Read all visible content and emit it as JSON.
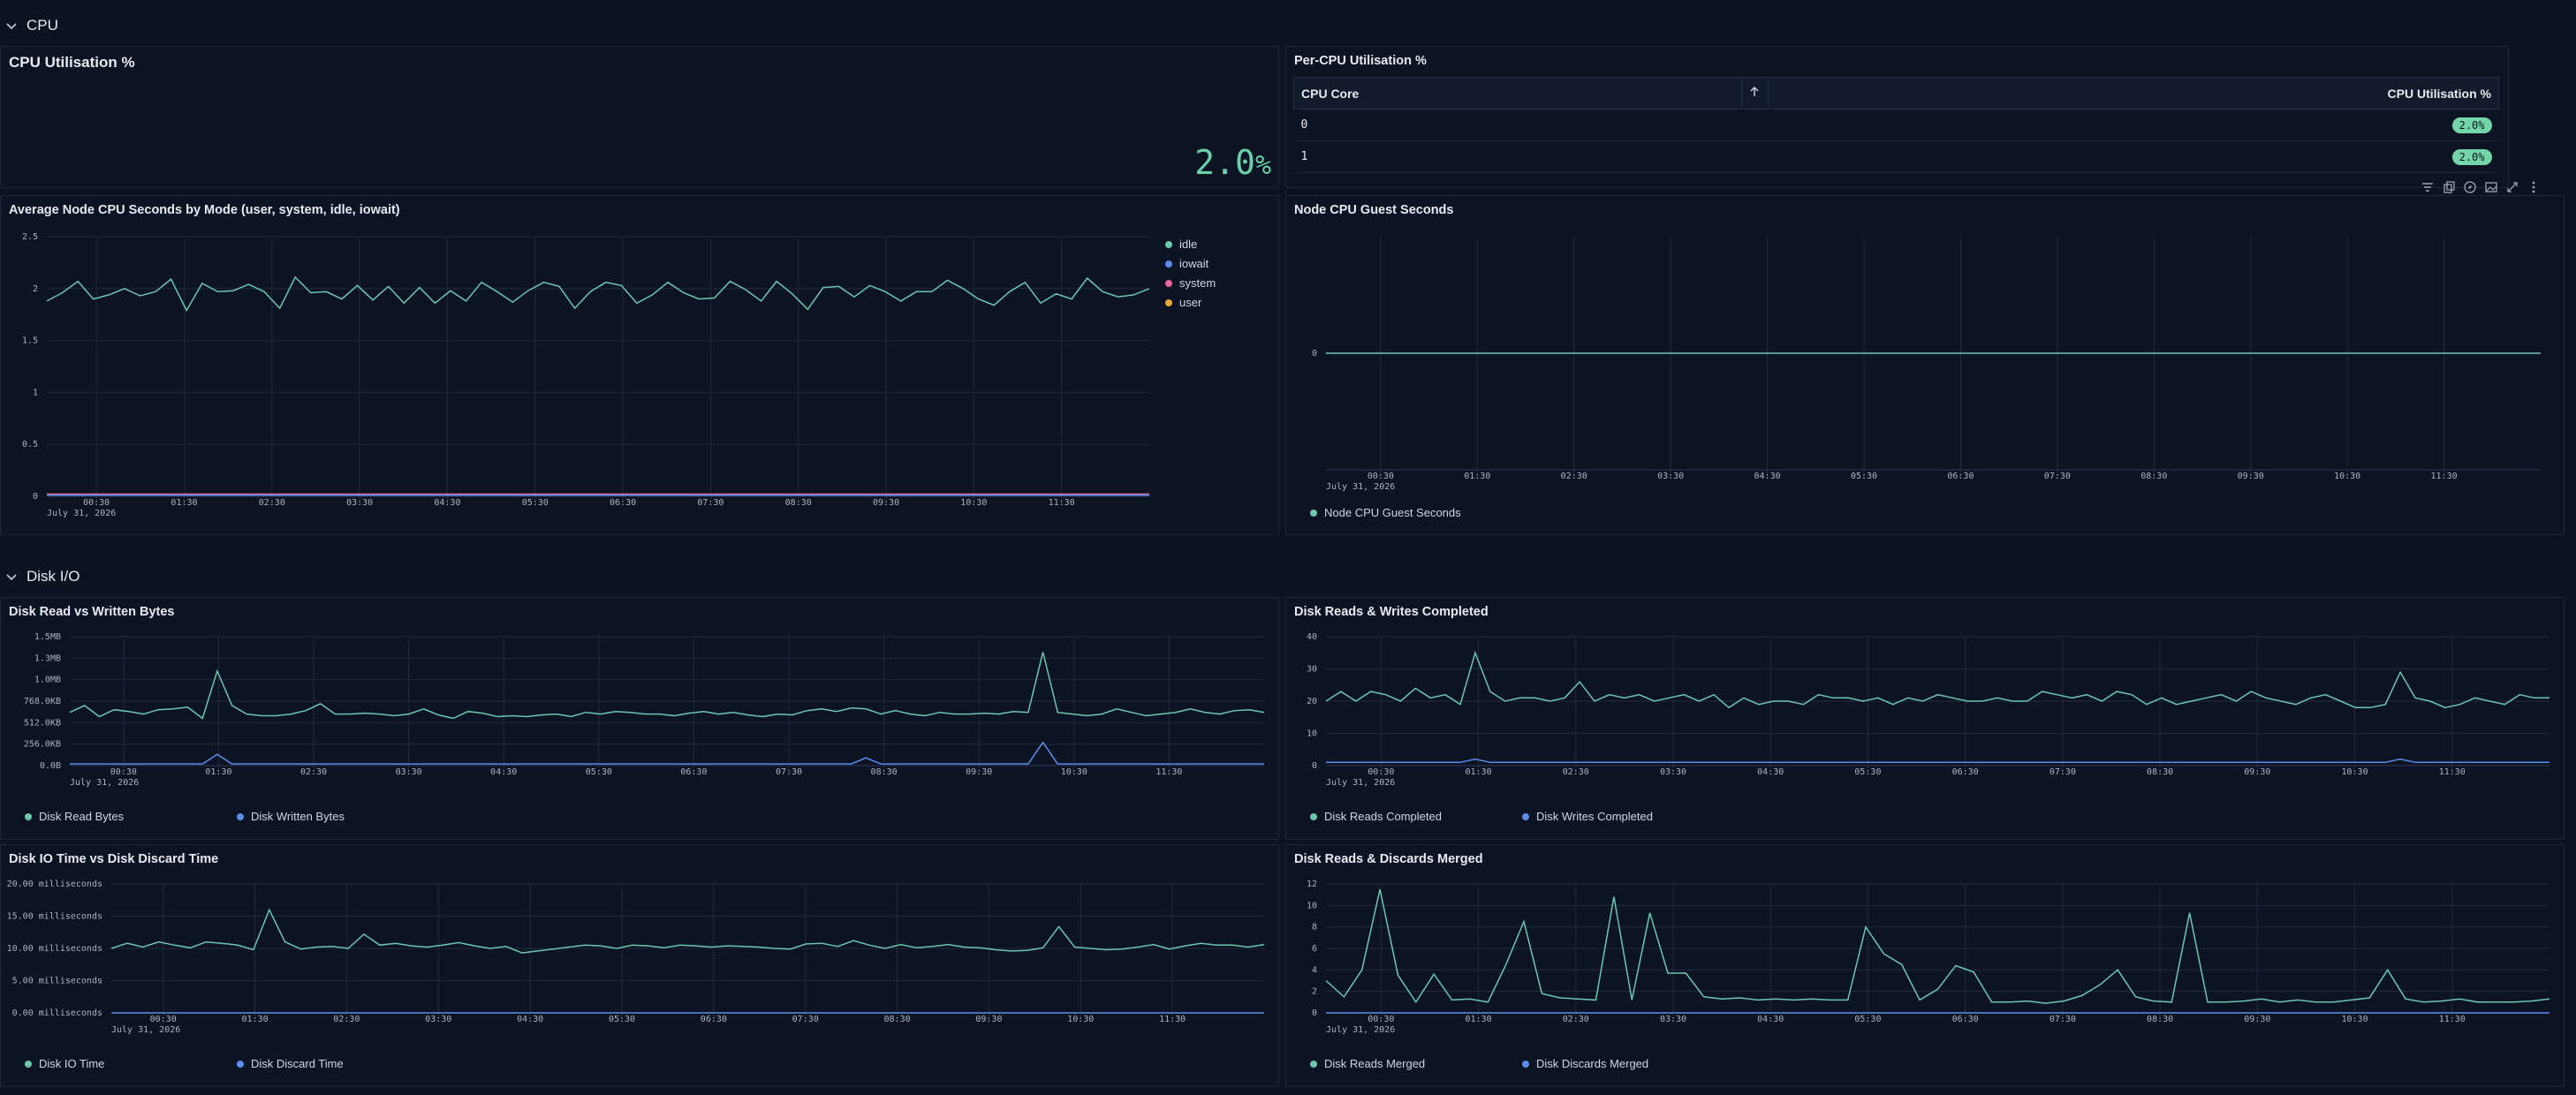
{
  "sections": {
    "cpu": "CPU",
    "disk": "Disk I/O"
  },
  "toolbar": {
    "icons": [
      "filter-icon",
      "copy-icon",
      "explore-icon",
      "image-icon",
      "expand-icon",
      "more-icon"
    ]
  },
  "colors": {
    "teal": "#6cc6b0",
    "blue": "#5b8def",
    "pink": "#e8659a",
    "orange": "#e8a838",
    "stat": "#6ad0a8"
  },
  "panels": {
    "cpu_util": {
      "title": "CPU Utilisation %",
      "value": "2.0",
      "unit": "%"
    },
    "per_cpu": {
      "title": "Per-CPU Utilisation %",
      "columns": [
        "CPU Core",
        "CPU Utilisation %"
      ],
      "sort_icon": "arrow-up-icon",
      "rows": [
        {
          "core": "0",
          "util": "2.0%"
        },
        {
          "core": "1",
          "util": "2.0%"
        }
      ]
    },
    "avg_cpu": {
      "title": "Average Node CPU Seconds by Mode (user, system, idle, iowait)"
    },
    "guest": {
      "title": "Node CPU Guest Seconds"
    },
    "disk_bytes": {
      "title": "Disk Read vs Written Bytes"
    },
    "disk_rw": {
      "title": "Disk Reads & Writes Completed"
    },
    "disk_io": {
      "title": "Disk IO Time vs Disk Discard Time"
    },
    "disk_merged": {
      "title": "Disk Reads & Discards Merged"
    }
  },
  "chart_data": [
    {
      "type": "line",
      "id": "avg_cpu",
      "date_label": "July 31, 2026",
      "x_ticks": [
        "00:30",
        "01:30",
        "02:30",
        "03:30",
        "04:30",
        "05:30",
        "06:30",
        "07:30",
        "08:30",
        "09:30",
        "10:30",
        "11:30"
      ],
      "y_ticks": [
        "0",
        "0.5",
        "1",
        "1.5",
        "2",
        "2.5"
      ],
      "ylim": [
        0,
        2.5
      ],
      "series": [
        {
          "name": "idle",
          "color": "#6cc6b0",
          "values": [
            1.88,
            1.96,
            2.07,
            1.9,
            1.94,
            2.0,
            1.93,
            1.97,
            2.09,
            1.79,
            2.05,
            1.97,
            1.98,
            2.04,
            1.97,
            1.81,
            2.11,
            1.96,
            1.97,
            1.9,
            2.03,
            1.89,
            2.02,
            1.86,
            2.01,
            1.86,
            1.98,
            1.88,
            2.06,
            1.97,
            1.87,
            1.98,
            2.06,
            2.02,
            1.81,
            1.97,
            2.06,
            2.03,
            1.86,
            1.94,
            2.06,
            1.96,
            1.9,
            1.91,
            2.07,
            1.99,
            1.88,
            2.07,
            1.95,
            1.8,
            2.01,
            2.02,
            1.92,
            2.03,
            1.97,
            1.88,
            1.97,
            1.97,
            2.08,
            2.0,
            1.9,
            1.84,
            1.97,
            2.06,
            1.86,
            1.95,
            1.9,
            2.1,
            1.97,
            1.92,
            1.94,
            2.0
          ]
        },
        {
          "name": "iowait",
          "color": "#5b8def",
          "values": [
            0.01,
            0.01,
            0.01,
            0.01,
            0.01,
            0.01,
            0.01,
            0.01,
            0.01,
            0.01,
            0.01,
            0.01
          ]
        },
        {
          "name": "system",
          "color": "#e8659a",
          "values": [
            0.02,
            0.02,
            0.02,
            0.02,
            0.02,
            0.02,
            0.02,
            0.02,
            0.02,
            0.02,
            0.02,
            0.02
          ]
        },
        {
          "name": "user",
          "color": "#e8a838",
          "values": [
            0.02,
            0.02,
            0.02,
            0.02,
            0.02,
            0.02,
            0.02,
            0.02,
            0.02,
            0.02,
            0.02,
            0.02
          ]
        }
      ]
    },
    {
      "type": "line",
      "id": "guest",
      "date_label": "July 31, 2026",
      "x_ticks": [
        "00:30",
        "01:30",
        "02:30",
        "03:30",
        "04:30",
        "05:30",
        "06:30",
        "07:30",
        "08:30",
        "09:30",
        "10:30",
        "11:30"
      ],
      "y_ticks": [
        "0"
      ],
      "ylim": [
        -1,
        1
      ],
      "series": [
        {
          "name": "Node CPU Guest Seconds",
          "color": "#6cc6b0",
          "values": [
            0,
            0,
            0,
            0,
            0,
            0,
            0,
            0,
            0,
            0,
            0,
            0
          ]
        }
      ]
    },
    {
      "type": "line",
      "id": "disk_bytes",
      "date_label": "July 31, 2026",
      "x_ticks": [
        "00:30",
        "01:30",
        "02:30",
        "03:30",
        "04:30",
        "05:30",
        "06:30",
        "07:30",
        "08:30",
        "09:30",
        "10:30",
        "11:30"
      ],
      "y_ticks": [
        "0.0B",
        "256.0KB",
        "512.0KB",
        "768.0KB",
        "1.0MB",
        "1.3MB",
        "1.5MB"
      ],
      "ylim": [
        0,
        1.5
      ],
      "series": [
        {
          "name": "Disk Read Bytes",
          "color": "#6cc6b0",
          "values": [
            0.62,
            0.7,
            0.57,
            0.65,
            0.63,
            0.6,
            0.65,
            0.66,
            0.68,
            0.55,
            1.1,
            0.7,
            0.6,
            0.58,
            0.58,
            0.6,
            0.64,
            0.72,
            0.6,
            0.6,
            0.61,
            0.6,
            0.58,
            0.6,
            0.66,
            0.59,
            0.55,
            0.63,
            0.61,
            0.57,
            0.58,
            0.57,
            0.59,
            0.6,
            0.57,
            0.62,
            0.6,
            0.63,
            0.62,
            0.6,
            0.6,
            0.58,
            0.61,
            0.63,
            0.6,
            0.62,
            0.59,
            0.57,
            0.6,
            0.59,
            0.64,
            0.66,
            0.63,
            0.67,
            0.66,
            0.6,
            0.64,
            0.6,
            0.58,
            0.62,
            0.6,
            0.6,
            0.61,
            0.6,
            0.63,
            0.62,
            1.32,
            0.62,
            0.6,
            0.58,
            0.6,
            0.66,
            0.62,
            0.58,
            0.6,
            0.62,
            0.66,
            0.62,
            0.6,
            0.64,
            0.65,
            0.62
          ]
        },
        {
          "name": "Disk Written Bytes",
          "color": "#5b8def",
          "values": [
            0.02,
            0.02,
            0.02,
            0.02,
            0.02,
            0.02,
            0.02,
            0.02,
            0.02,
            0.02,
            0.13,
            0.02,
            0.02,
            0.02,
            0.02,
            0.02,
            0.02,
            0.02,
            0.02,
            0.02,
            0.02,
            0.02,
            0.02,
            0.02,
            0.02,
            0.02,
            0.02,
            0.02,
            0.02,
            0.02,
            0.02,
            0.02,
            0.02,
            0.02,
            0.02,
            0.02,
            0.02,
            0.02,
            0.02,
            0.02,
            0.02,
            0.02,
            0.02,
            0.02,
            0.02,
            0.02,
            0.02,
            0.02,
            0.02,
            0.02,
            0.02,
            0.02,
            0.02,
            0.02,
            0.09,
            0.02,
            0.02,
            0.02,
            0.02,
            0.02,
            0.02,
            0.02,
            0.02,
            0.02,
            0.02,
            0.02,
            0.27,
            0.02,
            0.02,
            0.02,
            0.02,
            0.02,
            0.02,
            0.02,
            0.02,
            0.02,
            0.02,
            0.02,
            0.02,
            0.02,
            0.02,
            0.02
          ]
        }
      ]
    },
    {
      "type": "line",
      "id": "disk_rw",
      "date_label": "July 31, 2026",
      "x_ticks": [
        "00:30",
        "01:30",
        "02:30",
        "03:30",
        "04:30",
        "05:30",
        "06:30",
        "07:30",
        "08:30",
        "09:30",
        "10:30",
        "11:30"
      ],
      "y_ticks": [
        "0",
        "10",
        "20",
        "30",
        "40"
      ],
      "ylim": [
        0,
        40
      ],
      "series": [
        {
          "name": "Disk Reads Completed",
          "color": "#6cc6b0",
          "values": [
            20,
            23,
            20,
            23,
            22,
            20,
            24,
            21,
            22,
            19,
            35,
            23,
            20,
            21,
            21,
            20,
            21,
            26,
            20,
            22,
            21,
            22,
            20,
            21,
            22,
            20,
            22,
            18,
            21,
            19,
            20,
            20,
            19,
            22,
            21,
            21,
            20,
            21,
            19,
            21,
            20,
            22,
            21,
            20,
            20,
            21,
            20,
            20,
            23,
            22,
            21,
            22,
            20,
            23,
            22,
            19,
            21,
            19,
            20,
            21,
            22,
            20,
            23,
            21,
            20,
            19,
            21,
            22,
            20,
            18,
            18,
            19,
            29,
            21,
            20,
            18,
            19,
            21,
            20,
            19,
            22,
            21,
            21
          ]
        },
        {
          "name": "Disk Writes Completed",
          "color": "#5b8def",
          "values": [
            1,
            1,
            1,
            1,
            1,
            1,
            1,
            1,
            1,
            1,
            2,
            1,
            1,
            1,
            1,
            1,
            1,
            1,
            1,
            1,
            1,
            1,
            1,
            1,
            1,
            1,
            1,
            1,
            1,
            1,
            1,
            1,
            1,
            1,
            1,
            1,
            1,
            1,
            1,
            1,
            1,
            1,
            1,
            1,
            1,
            1,
            1,
            1,
            1,
            1,
            1,
            1,
            1,
            1,
            1,
            1,
            1,
            1,
            1,
            1,
            1,
            1,
            1,
            1,
            1,
            1,
            1,
            1,
            1,
            1,
            1,
            1,
            2,
            1,
            1,
            1,
            1,
            1,
            1,
            1,
            1,
            1,
            1
          ]
        }
      ]
    },
    {
      "type": "line",
      "id": "disk_io",
      "date_label": "July 31, 2026",
      "x_ticks": [
        "00:30",
        "01:30",
        "02:30",
        "03:30",
        "04:30",
        "05:30",
        "06:30",
        "07:30",
        "08:30",
        "09:30",
        "10:30",
        "11:30"
      ],
      "y_ticks": [
        "0.00 milliseconds",
        "5.00 milliseconds",
        "10.00 milliseconds",
        "15.00 milliseconds",
        "20.00 milliseconds"
      ],
      "ylim": [
        0,
        20
      ],
      "series": [
        {
          "name": "Disk IO Time",
          "color": "#6cc6b0",
          "values": [
            10,
            10.8,
            10.2,
            11,
            10.5,
            10.1,
            11,
            10.8,
            10.5,
            9.8,
            16,
            11,
            9.9,
            10.2,
            10.3,
            10,
            12.2,
            10.5,
            10.8,
            10.4,
            10.2,
            10.5,
            10.9,
            10.4,
            10,
            10.3,
            9.3,
            9.6,
            9.9,
            10.2,
            10.5,
            10.4,
            10,
            10.5,
            10.4,
            10.1,
            10.5,
            10.4,
            10.2,
            10.4,
            10.3,
            10.2,
            10,
            9.9,
            10.7,
            10.8,
            10.3,
            11.2,
            10.5,
            10,
            10.6,
            10.1,
            10.3,
            10.6,
            10.2,
            10.1,
            9.8,
            9.6,
            9.7,
            10.1,
            13.4,
            10.2,
            10,
            9.8,
            9.9,
            10.2,
            10.6,
            9.9,
            10.4,
            10.8,
            10.5,
            10.5,
            10.2,
            10.6
          ]
        },
        {
          "name": "Disk Discard Time",
          "color": "#5b8def",
          "values": [
            0,
            0,
            0,
            0,
            0,
            0,
            0,
            0,
            0,
            0,
            0,
            0
          ]
        }
      ]
    },
    {
      "type": "line",
      "id": "disk_merged",
      "date_label": "July 31, 2026",
      "x_ticks": [
        "00:30",
        "01:30",
        "02:30",
        "03:30",
        "04:30",
        "05:30",
        "06:30",
        "07:30",
        "08:30",
        "09:30",
        "10:30",
        "11:30"
      ],
      "y_ticks": [
        "0",
        "2",
        "4",
        "6",
        "8",
        "10",
        "12"
      ],
      "ylim": [
        0,
        12
      ],
      "series": [
        {
          "name": "Disk Reads Merged",
          "color": "#6cc6b0",
          "values": [
            3,
            1.5,
            4,
            11.5,
            3.5,
            1,
            3.6,
            1.2,
            1.3,
            1,
            4.5,
            8.5,
            1.8,
            1.4,
            1.3,
            1.2,
            10.8,
            1.2,
            9.3,
            3.7,
            3.7,
            1.5,
            1.3,
            1.4,
            1.2,
            1.3,
            1.2,
            1.3,
            1.2,
            1.2,
            8,
            5.5,
            4.5,
            1.2,
            2.2,
            4.4,
            3.8,
            1,
            1,
            1.1,
            0.9,
            1.1,
            1.6,
            2.6,
            4,
            1.5,
            1.1,
            1,
            9.3,
            1,
            1,
            1.1,
            1.3,
            1,
            1.2,
            1,
            1,
            1.2,
            1.4,
            4,
            1.3,
            1,
            1.1,
            1.3,
            1,
            1,
            1,
            1.1,
            1.3
          ]
        },
        {
          "name": "Disk Discards Merged",
          "color": "#5b8def",
          "values": [
            0,
            0,
            0,
            0,
            0,
            0,
            0,
            0,
            0,
            0,
            0,
            0
          ]
        }
      ]
    }
  ]
}
